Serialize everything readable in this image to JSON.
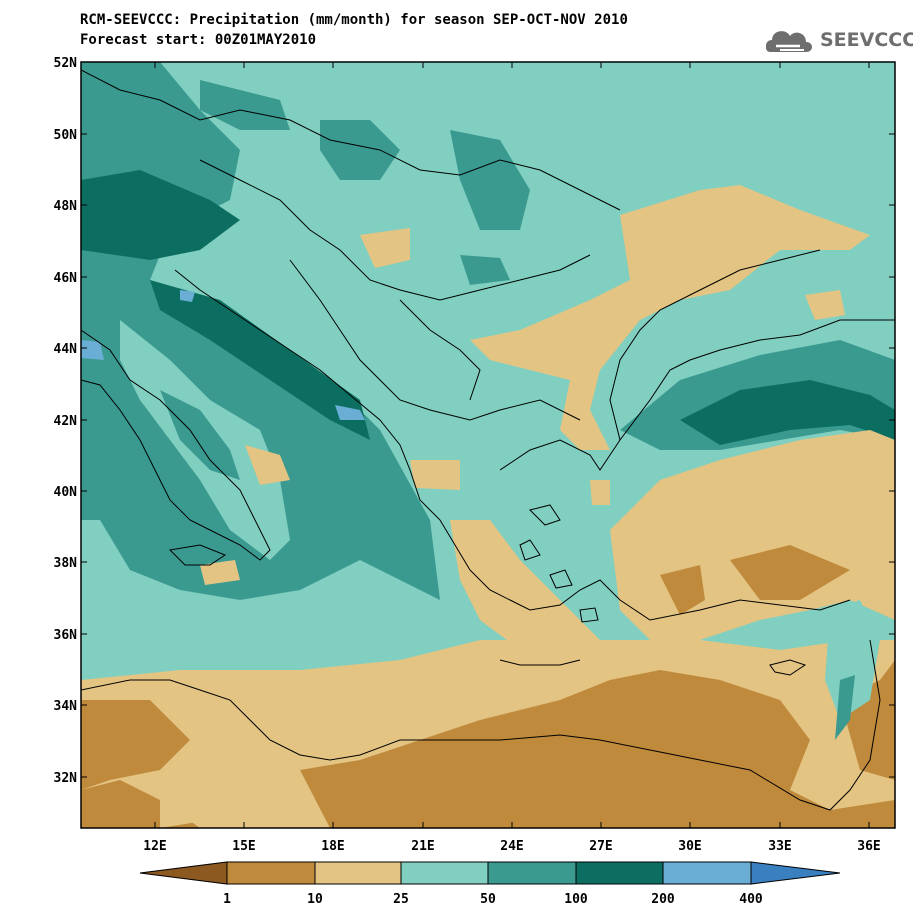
{
  "map": {
    "title_line1": "RCM-SEEVCCC: Precipitation (mm/month) for season SEP-OCT-NOV 2010",
    "title_line2": "Forecast start: 00Z01MAY2010",
    "logo_text": "SEEVCCC",
    "lat_labels": [
      "52N",
      "50N",
      "48N",
      "46N",
      "44N",
      "42N",
      "40N",
      "38N",
      "36N",
      "34N",
      "32N"
    ],
    "lon_labels": [
      "12E",
      "15E",
      "18E",
      "21E",
      "24E",
      "27E",
      "30E",
      "33E",
      "36E"
    ]
  },
  "legend": {
    "labels": [
      "1",
      "10",
      "25",
      "50",
      "100",
      "200",
      "400"
    ],
    "colors": [
      "#8c5a20",
      "#c08a3c",
      "#e3c483",
      "#80cfc0",
      "#3a9a90",
      "#0b6e60",
      "#6aaed6",
      "#3a7fc0"
    ]
  }
}
